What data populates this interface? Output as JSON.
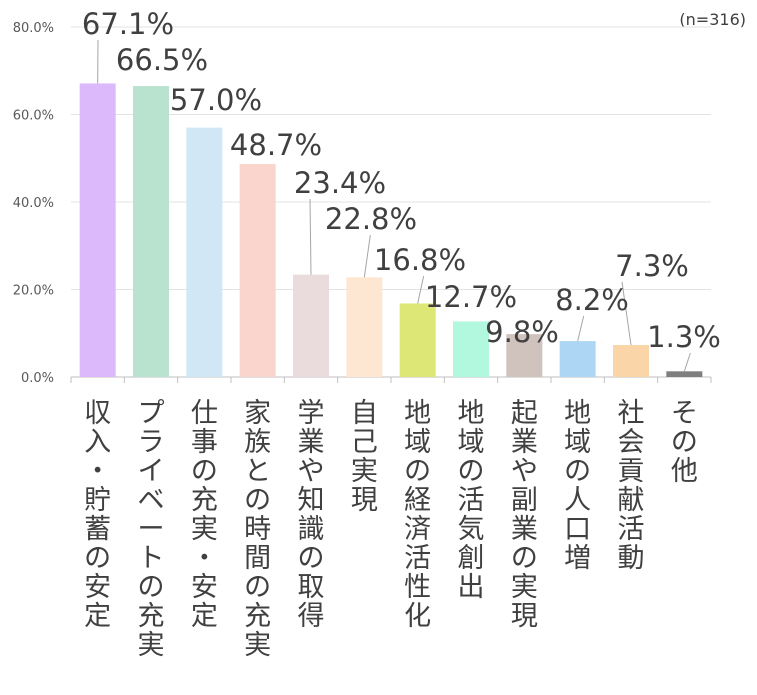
{
  "chart_data": {
    "type": "bar",
    "note": "(n=316)",
    "categories": [
      "収入・貯蓄の安定",
      "プライベートの充実",
      "仕事の充実・安定",
      "家族との時間の充実",
      "学業や知識の取得",
      "自己実現",
      "地域の経済活性化",
      "地域の活気創出",
      "起業や副業の実現",
      "地域の人口増",
      "社会貢献活動",
      "その他"
    ],
    "values": [
      67.1,
      66.5,
      57.0,
      48.7,
      23.4,
      22.8,
      16.8,
      12.7,
      9.8,
      8.2,
      7.3,
      1.3
    ],
    "value_labels": [
      "67.1%",
      "66.5%",
      "57.0%",
      "48.7%",
      "23.4%",
      "22.8%",
      "16.8%",
      "12.7%",
      "9.8%",
      "8.2%",
      "7.3%",
      "1.3%"
    ],
    "colors": [
      "#dcb9fb",
      "#b9e3cf",
      "#d2e7f6",
      "#fad5cd",
      "#eadcdc",
      "#fde6d2",
      "#dde776",
      "#b1f8df",
      "#d0c2bd",
      "#acd6f3",
      "#fad5a8",
      "#7f7f7f"
    ],
    "yticks": [
      "0.0%",
      "20.0%",
      "40.0%",
      "60.0%",
      "80.0%"
    ],
    "ylim": [
      0,
      80
    ],
    "grid": true,
    "xlabel": "",
    "ylabel": ""
  }
}
